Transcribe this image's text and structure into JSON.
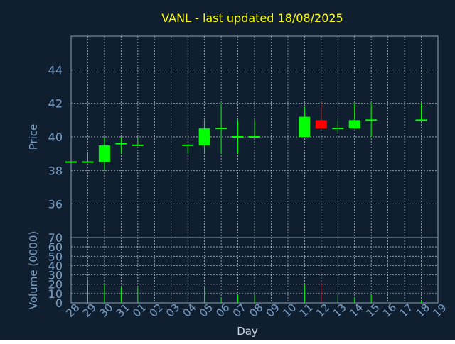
{
  "colors": {
    "background": "#0f1f30",
    "title": "#ffff00",
    "axis_text": "#7aa0c8",
    "frame": "#8fa3b8",
    "grid": "#c0c8d0",
    "up": "#00ff00",
    "down": "#ff0000"
  },
  "chart_data": {
    "type": "candlestick",
    "title": "VANL - last updated 18/08/2025",
    "xlabel": "Day",
    "price_panel": {
      "ylabel": "Price",
      "ylim": [
        34.0,
        46.0
      ],
      "yticks": [
        36,
        38,
        40,
        42,
        44
      ]
    },
    "volume_panel": {
      "ylabel": "Volume (0000)",
      "ylim": [
        0,
        70
      ],
      "yticks": [
        0,
        10,
        20,
        30,
        40,
        50,
        60,
        70
      ]
    },
    "grid": true,
    "days": [
      "28",
      "29",
      "30",
      "31",
      "01",
      "02",
      "03",
      "04",
      "05",
      "06",
      "07",
      "08",
      "09",
      "10",
      "11",
      "12",
      "13",
      "14",
      "15",
      "16",
      "17",
      "18",
      "19"
    ],
    "candles": [
      {
        "day": "28",
        "open": 38.5,
        "high": 38.5,
        "low": 38.5,
        "close": 38.5,
        "volume": 0
      },
      {
        "day": "29",
        "open": 38.5,
        "high": 39.0,
        "low": 38.5,
        "close": 38.5,
        "volume": 25
      },
      {
        "day": "30",
        "open": 38.5,
        "high": 40.0,
        "low": 38.0,
        "close": 39.5,
        "volume": 20
      },
      {
        "day": "31",
        "open": 39.55,
        "high": 40.0,
        "low": 39.0,
        "close": 39.65,
        "volume": 17
      },
      {
        "day": "01",
        "open": 39.5,
        "high": 40.0,
        "low": 39.5,
        "close": 39.5,
        "volume": 18
      },
      {
        "day": "04",
        "open": 39.5,
        "high": 39.5,
        "low": 39.0,
        "close": 39.5,
        "volume": 0
      },
      {
        "day": "05",
        "open": 39.5,
        "high": 41.0,
        "low": 39.0,
        "close": 40.5,
        "volume": 17
      },
      {
        "day": "06",
        "open": 40.5,
        "high": 42.0,
        "low": 39.0,
        "close": 40.5,
        "volume": 6
      },
      {
        "day": "07",
        "open": 40.0,
        "high": 41.0,
        "low": 39.0,
        "close": 40.0,
        "volume": 9
      },
      {
        "day": "08",
        "open": 40.0,
        "high": 41.0,
        "low": 40.0,
        "close": 40.0,
        "volume": 8
      },
      {
        "day": "11",
        "open": 40.0,
        "high": 41.8,
        "low": 40.0,
        "close": 41.2,
        "volume": 20
      },
      {
        "day": "12",
        "open": 41.0,
        "high": 42.0,
        "low": 40.5,
        "close": 40.5,
        "volume": 22
      },
      {
        "day": "13",
        "open": 40.5,
        "high": 41.0,
        "low": 40.2,
        "close": 40.5,
        "volume": 8
      },
      {
        "day": "14",
        "open": 40.5,
        "high": 42.0,
        "low": 40.5,
        "close": 41.0,
        "volume": 5
      },
      {
        "day": "15",
        "open": 41.0,
        "high": 42.0,
        "low": 40.0,
        "close": 41.0,
        "volume": 9
      },
      {
        "day": "18",
        "open": 41.0,
        "high": 42.0,
        "low": 41.0,
        "close": 41.0,
        "volume": 3
      }
    ]
  }
}
